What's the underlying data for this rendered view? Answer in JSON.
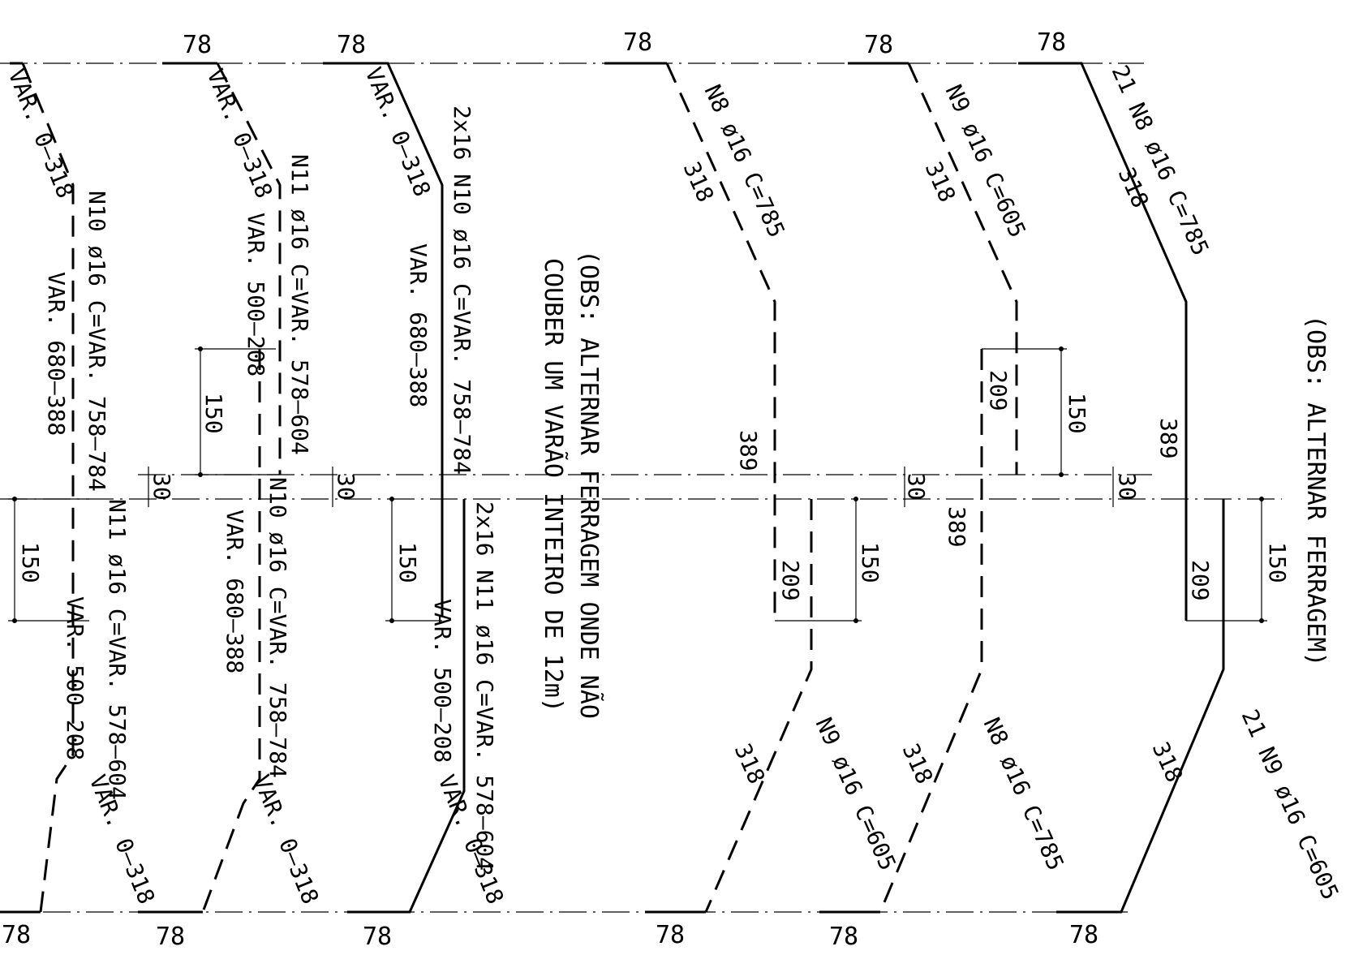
{
  "drawing": {
    "top_dims": [
      "78",
      "78",
      "78",
      "78",
      "78"
    ],
    "bottom_dims": [
      "78",
      "78",
      "78",
      "78",
      "78",
      "78"
    ],
    "bars": {
      "b1_top_slope": "VAR. 0–318",
      "b1_label": "N10 ø16 C=VAR. 758–784",
      "b1_var": "VAR. 680–388",
      "b1_lower_label": "N11 ø16 C=VAR. 578–604",
      "b1_lower_var": "VAR. 500–208",
      "b1_bottom_slope": "VAR. 0–318",
      "b2_top_slope": "VAR. 0–318",
      "b2_label": "N11 ø16 C=VAR. 578–604",
      "b2_var": "VAR. 500–208",
      "b2_lower_label": "N10 ø16 C=VAR. 758–784",
      "b2_lower_var": "VAR. 680–388",
      "b2_bottom_slope": "VAR. 0–318",
      "b3_top_slope": "VAR. 0–318",
      "b3_label": "2x16 N10 ø16 C=VAR. 758–784",
      "b3_var": "VAR. 680–388",
      "b3_lower_label": "2x16 N11 ø16 C=VAR. 578–604",
      "b3_lower_var": "VAR. 500–208",
      "b3_bottom_slope": "VAR. 0–318",
      "b4_top": "N8 ø16 C=785",
      "b4_top_len": "318",
      "b4_mid": "389",
      "b4_low": "209",
      "b4_bottom": "N9 ø16 C=605",
      "b4_bottom_len": "318",
      "b5_top": "N9 ø16 C=605",
      "b5_top_len": "318",
      "b5_mid": "209",
      "b5_low": "389",
      "b5_bottom": "N8 ø16 C=785",
      "b5_bottom_len": "318",
      "b6_top": "21 N8 ø16 C=785",
      "b6_top_len": "318",
      "b6_mid": "389",
      "b6_low": "209",
      "b6_bottom": "21 N9 ø16 C=605",
      "b6_bottom_len": "318"
    },
    "dims": {
      "d150": "150",
      "d30": "30"
    },
    "notes": {
      "obs_center_line1": "(OBS: ALTERNAR FERRAGEM ONDE NÃO",
      "obs_center_line2": "COUBER UM VARÃO INTEIRO DE 12m)",
      "obs_right": "(OBS: ALTERNAR FERRAGEM)"
    }
  }
}
